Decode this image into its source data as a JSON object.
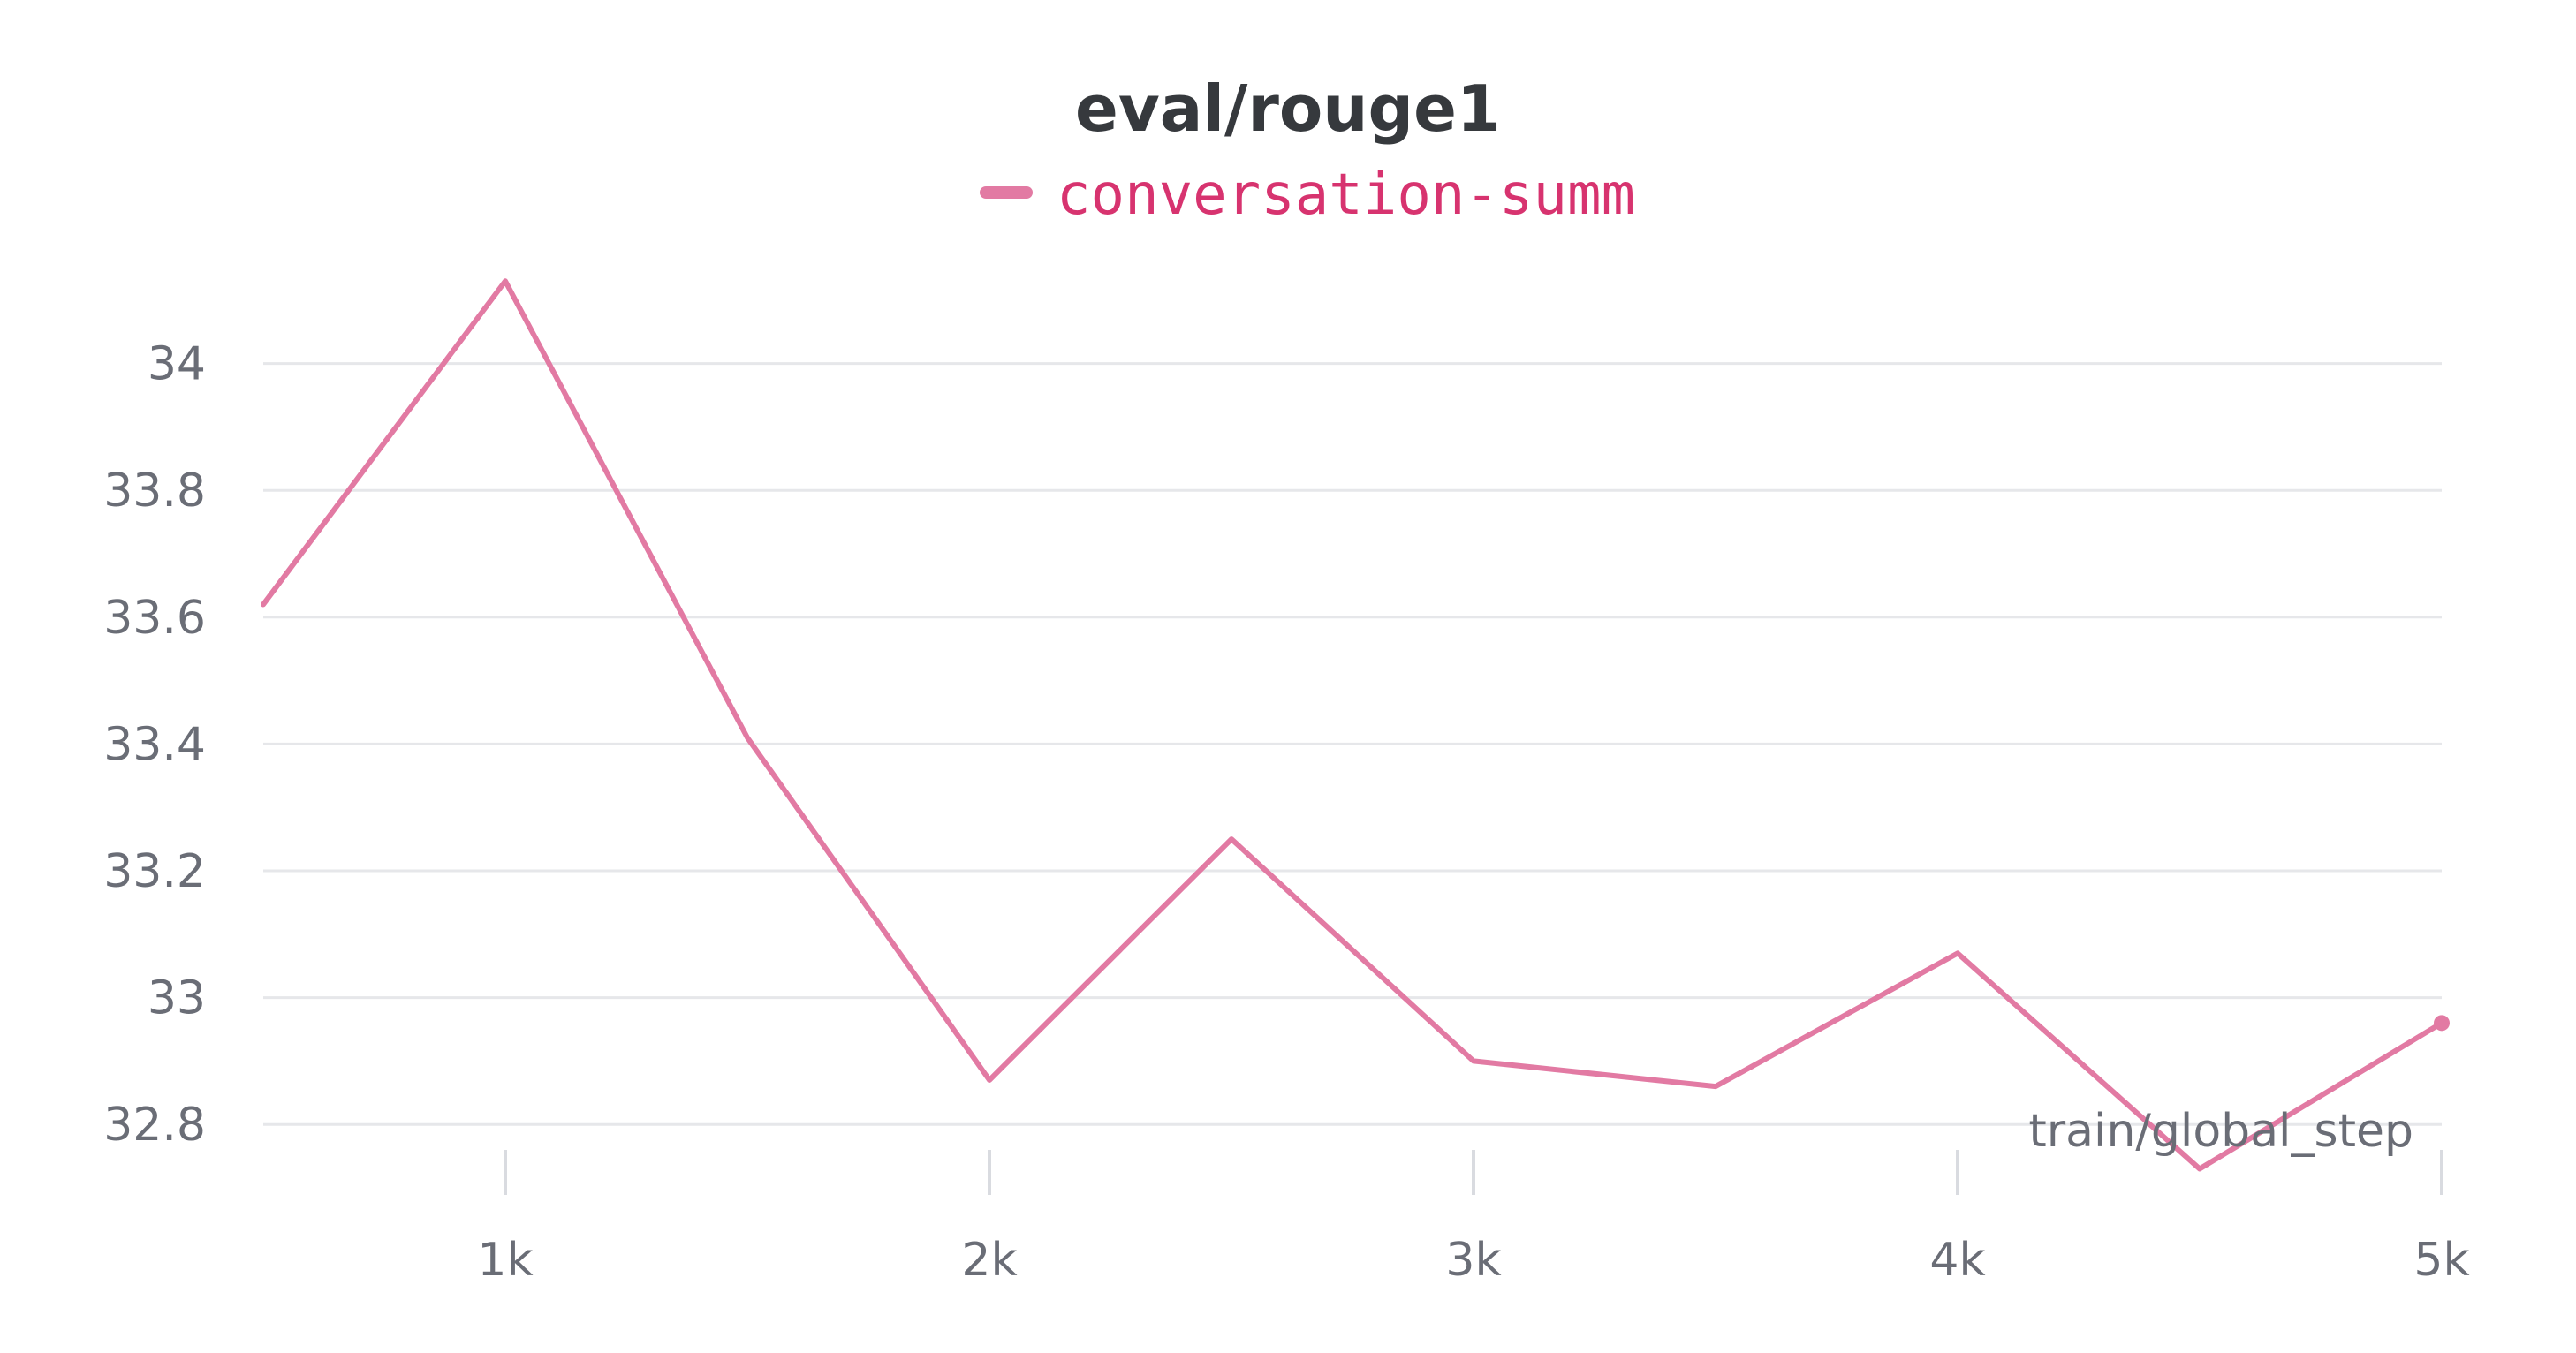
{
  "chart_data": {
    "type": "line",
    "title": "eval/rouge1",
    "xlabel": "train/global_step",
    "ylabel": "",
    "legend": {
      "placement": "top-center"
    },
    "grid": true,
    "xlim": [
      500,
      5000
    ],
    "ylim": [
      32.7,
      34.2
    ],
    "x_ticks": [
      1000,
      2000,
      3000,
      4000,
      5000
    ],
    "x_tick_labels": [
      "1k",
      "2k",
      "3k",
      "4k",
      "5k"
    ],
    "y_ticks": [
      32.8,
      33.0,
      33.2,
      33.4,
      33.6,
      33.8,
      34.0
    ],
    "y_tick_labels": [
      "32.8",
      "33",
      "33.2",
      "33.4",
      "33.6",
      "33.8",
      "34"
    ],
    "series": [
      {
        "name": "conversation-summ",
        "color": "#e27aa3",
        "x": [
          500,
          1000,
          1500,
          2000,
          2500,
          3000,
          3500,
          4000,
          4500,
          5000
        ],
        "y": [
          33.62,
          34.13,
          33.41,
          32.87,
          33.25,
          32.9,
          32.86,
          33.07,
          32.73,
          32.96
        ]
      }
    ]
  }
}
